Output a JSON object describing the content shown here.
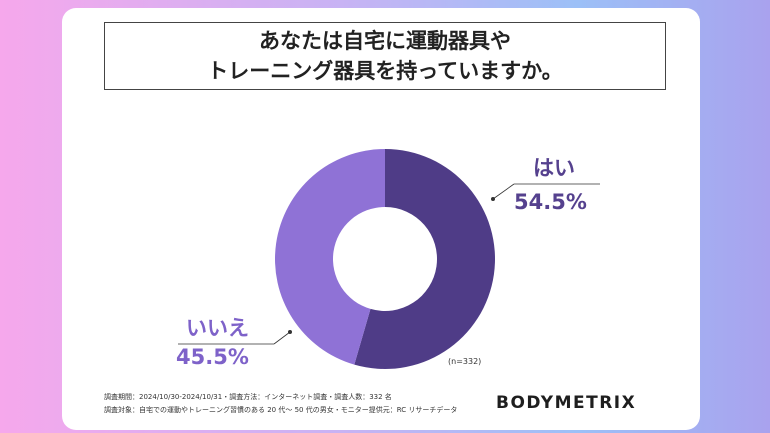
{
  "title": {
    "line1": "あなたは自宅に運動器具や",
    "line2": "トレーニング器具を持っていますか。"
  },
  "chart_data": {
    "type": "pie",
    "variant": "donut",
    "slices": [
      {
        "label": "はい",
        "value": 54.5,
        "display": "54.5%",
        "color": "#4f3c87"
      },
      {
        "label": "いいえ",
        "value": 45.5,
        "display": "45.5%",
        "color": "#8f72d6"
      }
    ],
    "sample_note": "(n=332)"
  },
  "footnotes": {
    "line1": "調査期間：2024/10/30-2024/10/31・調査方法：インターネット調査・調査人数：332 名",
    "line2": "調査対象：自宅での運動やトレーニング習慣のある 20 代〜 50 代の男女・モニター提供元：RC リサーチデータ"
  },
  "logo_text": "BODYMETRIX"
}
